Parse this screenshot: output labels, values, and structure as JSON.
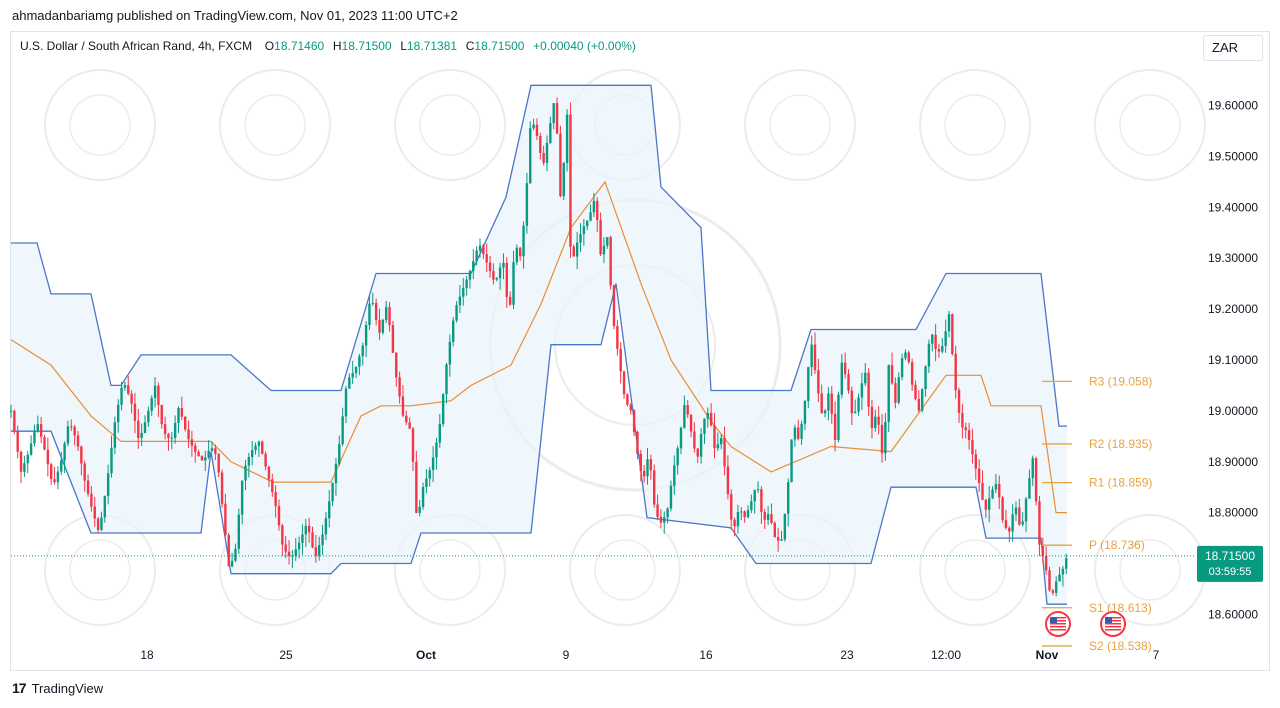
{
  "header": {
    "published": "ahmadanbariamg published on TradingView.com, Nov 01, 2023 11:00 UTC+2",
    "symbol": "U.S. Dollar / South African Rand, 4h, FXCM",
    "ohlc": {
      "o_label": "O",
      "o_value": "18.71460",
      "h_label": "H",
      "h_value": "18.71500",
      "l_label": "L",
      "l_value": "18.71381",
      "c_label": "C",
      "c_value": "18.71500",
      "change": "+0.00040 (+0.00%)"
    },
    "currency": "ZAR"
  },
  "footer": {
    "brand": "TradingView",
    "logo": "tv-logo-icon"
  },
  "chart_data": {
    "type": "candlestick",
    "symbol": "USDZAR",
    "timeframe": "4h",
    "colors": {
      "up": "#089981",
      "down": "#f23645",
      "channel": "#4a77c9",
      "channel_fill": "#eaf3fb",
      "midline": "#ec8d33",
      "pivot": "#e8a33c"
    },
    "ylim": [
      18.53,
      19.67
    ],
    "y_ticks": [
      "19.60000",
      "19.50000",
      "19.40000",
      "19.30000",
      "19.20000",
      "19.10000",
      "19.00000",
      "18.90000",
      "18.80000",
      "18.60000"
    ],
    "x_ticks": [
      "18",
      "25",
      "Oct",
      "9",
      "16",
      "23",
      "12:00",
      "Nov",
      "7"
    ],
    "last_price": {
      "value": "18.71500",
      "countdown": "03:59:55",
      "price": 18.715
    },
    "pivots": [
      {
        "label": "R3 (19.058)",
        "value": 19.058
      },
      {
        "label": "R2 (18.935)",
        "value": 18.935
      },
      {
        "label": "R1 (18.859)",
        "value": 18.859
      },
      {
        "label": "P (18.736)",
        "value": 18.736
      },
      {
        "label": "S1 (18.613)",
        "value": 18.613
      },
      {
        "label": "S2 (18.538)",
        "value": 18.538
      }
    ],
    "path": [
      [
        0,
        19.0
      ],
      [
        10,
        18.88
      ],
      [
        18,
        18.92
      ],
      [
        26,
        18.98
      ],
      [
        34,
        18.92
      ],
      [
        42,
        18.85
      ],
      [
        50,
        18.9
      ],
      [
        58,
        18.98
      ],
      [
        66,
        18.94
      ],
      [
        74,
        18.86
      ],
      [
        82,
        18.8
      ],
      [
        88,
        18.76
      ],
      [
        96,
        18.86
      ],
      [
        104,
        18.98
      ],
      [
        112,
        19.06
      ],
      [
        120,
        19.02
      ],
      [
        128,
        18.94
      ],
      [
        136,
        18.99
      ],
      [
        144,
        19.05
      ],
      [
        152,
        18.96
      ],
      [
        160,
        18.94
      ],
      [
        168,
        19.01
      ],
      [
        176,
        18.95
      ],
      [
        184,
        18.92
      ],
      [
        192,
        18.9
      ],
      [
        200,
        18.93
      ],
      [
        206,
        18.91
      ],
      [
        212,
        18.8
      ],
      [
        218,
        18.69
      ],
      [
        224,
        18.72
      ],
      [
        232,
        18.88
      ],
      [
        240,
        18.92
      ],
      [
        248,
        18.94
      ],
      [
        256,
        18.88
      ],
      [
        264,
        18.82
      ],
      [
        272,
        18.73
      ],
      [
        280,
        18.71
      ],
      [
        288,
        18.74
      ],
      [
        296,
        18.78
      ],
      [
        304,
        18.71
      ],
      [
        312,
        18.76
      ],
      [
        320,
        18.84
      ],
      [
        328,
        18.93
      ],
      [
        336,
        19.06
      ],
      [
        344,
        19.08
      ],
      [
        352,
        19.13
      ],
      [
        360,
        19.23
      ],
      [
        368,
        19.15
      ],
      [
        376,
        19.21
      ],
      [
        384,
        19.08
      ],
      [
        392,
        18.99
      ],
      [
        400,
        18.96
      ],
      [
        406,
        18.78
      ],
      [
        412,
        18.85
      ],
      [
        420,
        18.89
      ],
      [
        428,
        18.96
      ],
      [
        436,
        19.1
      ],
      [
        444,
        19.2
      ],
      [
        452,
        19.24
      ],
      [
        460,
        19.28
      ],
      [
        468,
        19.33
      ],
      [
        476,
        19.29
      ],
      [
        484,
        19.25
      ],
      [
        492,
        19.3
      ],
      [
        498,
        19.18
      ],
      [
        504,
        19.33
      ],
      [
        510,
        19.3
      ],
      [
        516,
        19.45
      ],
      [
        520,
        19.58
      ],
      [
        526,
        19.54
      ],
      [
        532,
        19.48
      ],
      [
        538,
        19.55
      ],
      [
        544,
        19.62
      ],
      [
        550,
        19.4
      ],
      [
        556,
        19.59
      ],
      [
        560,
        19.28
      ],
      [
        566,
        19.33
      ],
      [
        572,
        19.36
      ],
      [
        578,
        19.38
      ],
      [
        584,
        19.42
      ],
      [
        590,
        19.3
      ],
      [
        596,
        19.35
      ],
      [
        602,
        19.18
      ],
      [
        608,
        19.1
      ],
      [
        614,
        19.02
      ],
      [
        620,
        19.0
      ],
      [
        626,
        18.92
      ],
      [
        632,
        18.86
      ],
      [
        638,
        18.92
      ],
      [
        644,
        18.8
      ],
      [
        650,
        18.78
      ],
      [
        656,
        18.8
      ],
      [
        662,
        18.88
      ],
      [
        668,
        18.94
      ],
      [
        674,
        19.02
      ],
      [
        680,
        18.96
      ],
      [
        686,
        18.9
      ],
      [
        692,
        18.98
      ],
      [
        698,
        19.0
      ],
      [
        704,
        18.92
      ],
      [
        710,
        18.95
      ],
      [
        716,
        18.85
      ],
      [
        722,
        18.76
      ],
      [
        728,
        18.81
      ],
      [
        734,
        18.79
      ],
      [
        740,
        18.82
      ],
      [
        746,
        18.86
      ],
      [
        752,
        18.78
      ],
      [
        758,
        18.8
      ],
      [
        764,
        18.75
      ],
      [
        770,
        18.74
      ],
      [
        776,
        18.83
      ],
      [
        782,
        18.98
      ],
      [
        788,
        18.94
      ],
      [
        794,
        19.02
      ],
      [
        800,
        19.14
      ],
      [
        806,
        19.05
      ],
      [
        812,
        18.98
      ],
      [
        818,
        19.04
      ],
      [
        824,
        18.94
      ],
      [
        830,
        19.1
      ],
      [
        836,
        19.06
      ],
      [
        842,
        18.98
      ],
      [
        848,
        19.03
      ],
      [
        854,
        19.08
      ],
      [
        860,
        18.96
      ],
      [
        866,
        19.0
      ],
      [
        872,
        18.9
      ],
      [
        878,
        19.1
      ],
      [
        884,
        19.01
      ],
      [
        890,
        19.1
      ],
      [
        896,
        19.12
      ],
      [
        902,
        19.04
      ],
      [
        908,
        19.0
      ],
      [
        914,
        19.08
      ],
      [
        920,
        19.16
      ],
      [
        926,
        19.11
      ],
      [
        932,
        19.13
      ],
      [
        938,
        19.19
      ],
      [
        944,
        19.05
      ],
      [
        950,
        18.97
      ],
      [
        956,
        18.96
      ],
      [
        962,
        18.91
      ],
      [
        968,
        18.86
      ],
      [
        974,
        18.8
      ],
      [
        980,
        18.84
      ],
      [
        986,
        18.86
      ],
      [
        992,
        18.78
      ],
      [
        998,
        18.76
      ],
      [
        1004,
        18.82
      ],
      [
        1010,
        18.76
      ],
      [
        1016,
        18.84
      ],
      [
        1022,
        18.91
      ],
      [
        1028,
        18.74
      ],
      [
        1034,
        18.7
      ],
      [
        1040,
        18.63
      ],
      [
        1046,
        18.67
      ],
      [
        1052,
        18.69
      ],
      [
        1056,
        18.715
      ]
    ],
    "upper_channel": [
      [
        0,
        19.33
      ],
      [
        26,
        19.33
      ],
      [
        40,
        19.23
      ],
      [
        80,
        19.23
      ],
      [
        100,
        19.05
      ],
      [
        110,
        19.05
      ],
      [
        130,
        19.11
      ],
      [
        220,
        19.11
      ],
      [
        260,
        19.04
      ],
      [
        330,
        19.04
      ],
      [
        365,
        19.27
      ],
      [
        460,
        19.27
      ],
      [
        495,
        19.42
      ],
      [
        520,
        19.64
      ],
      [
        640,
        19.64
      ],
      [
        650,
        19.44
      ],
      [
        690,
        19.36
      ],
      [
        700,
        19.04
      ],
      [
        780,
        19.04
      ],
      [
        800,
        19.16
      ],
      [
        905,
        19.16
      ],
      [
        935,
        19.27
      ],
      [
        1030,
        19.27
      ],
      [
        1048,
        18.97
      ],
      [
        1056,
        18.97
      ]
    ],
    "lower_channel": [
      [
        0,
        18.96
      ],
      [
        40,
        18.96
      ],
      [
        80,
        18.76
      ],
      [
        190,
        18.76
      ],
      [
        200,
        18.92
      ],
      [
        220,
        18.68
      ],
      [
        320,
        18.68
      ],
      [
        330,
        18.7
      ],
      [
        400,
        18.7
      ],
      [
        410,
        18.76
      ],
      [
        520,
        18.76
      ],
      [
        540,
        19.13
      ],
      [
        590,
        19.13
      ],
      [
        605,
        19.25
      ],
      [
        636,
        18.79
      ],
      [
        720,
        18.77
      ],
      [
        745,
        18.7
      ],
      [
        860,
        18.7
      ],
      [
        880,
        18.85
      ],
      [
        965,
        18.85
      ],
      [
        975,
        18.75
      ],
      [
        1030,
        18.75
      ],
      [
        1036,
        18.62
      ],
      [
        1056,
        18.62
      ]
    ],
    "mid_channel": [
      [
        0,
        19.14
      ],
      [
        40,
        19.09
      ],
      [
        80,
        18.99
      ],
      [
        110,
        18.94
      ],
      [
        130,
        18.94
      ],
      [
        200,
        18.94
      ],
      [
        220,
        18.9
      ],
      [
        262,
        18.86
      ],
      [
        320,
        18.86
      ],
      [
        350,
        18.99
      ],
      [
        370,
        19.01
      ],
      [
        400,
        19.01
      ],
      [
        440,
        19.02
      ],
      [
        460,
        19.05
      ],
      [
        500,
        19.09
      ],
      [
        530,
        19.21
      ],
      [
        560,
        19.36
      ],
      [
        594,
        19.45
      ],
      [
        630,
        19.25
      ],
      [
        660,
        19.1
      ],
      [
        700,
        18.98
      ],
      [
        720,
        18.93
      ],
      [
        760,
        18.88
      ],
      [
        820,
        18.93
      ],
      [
        880,
        18.92
      ],
      [
        935,
        19.07
      ],
      [
        970,
        19.07
      ],
      [
        980,
        19.01
      ],
      [
        1030,
        19.01
      ],
      [
        1045,
        18.8
      ],
      [
        1056,
        18.8
      ]
    ]
  }
}
